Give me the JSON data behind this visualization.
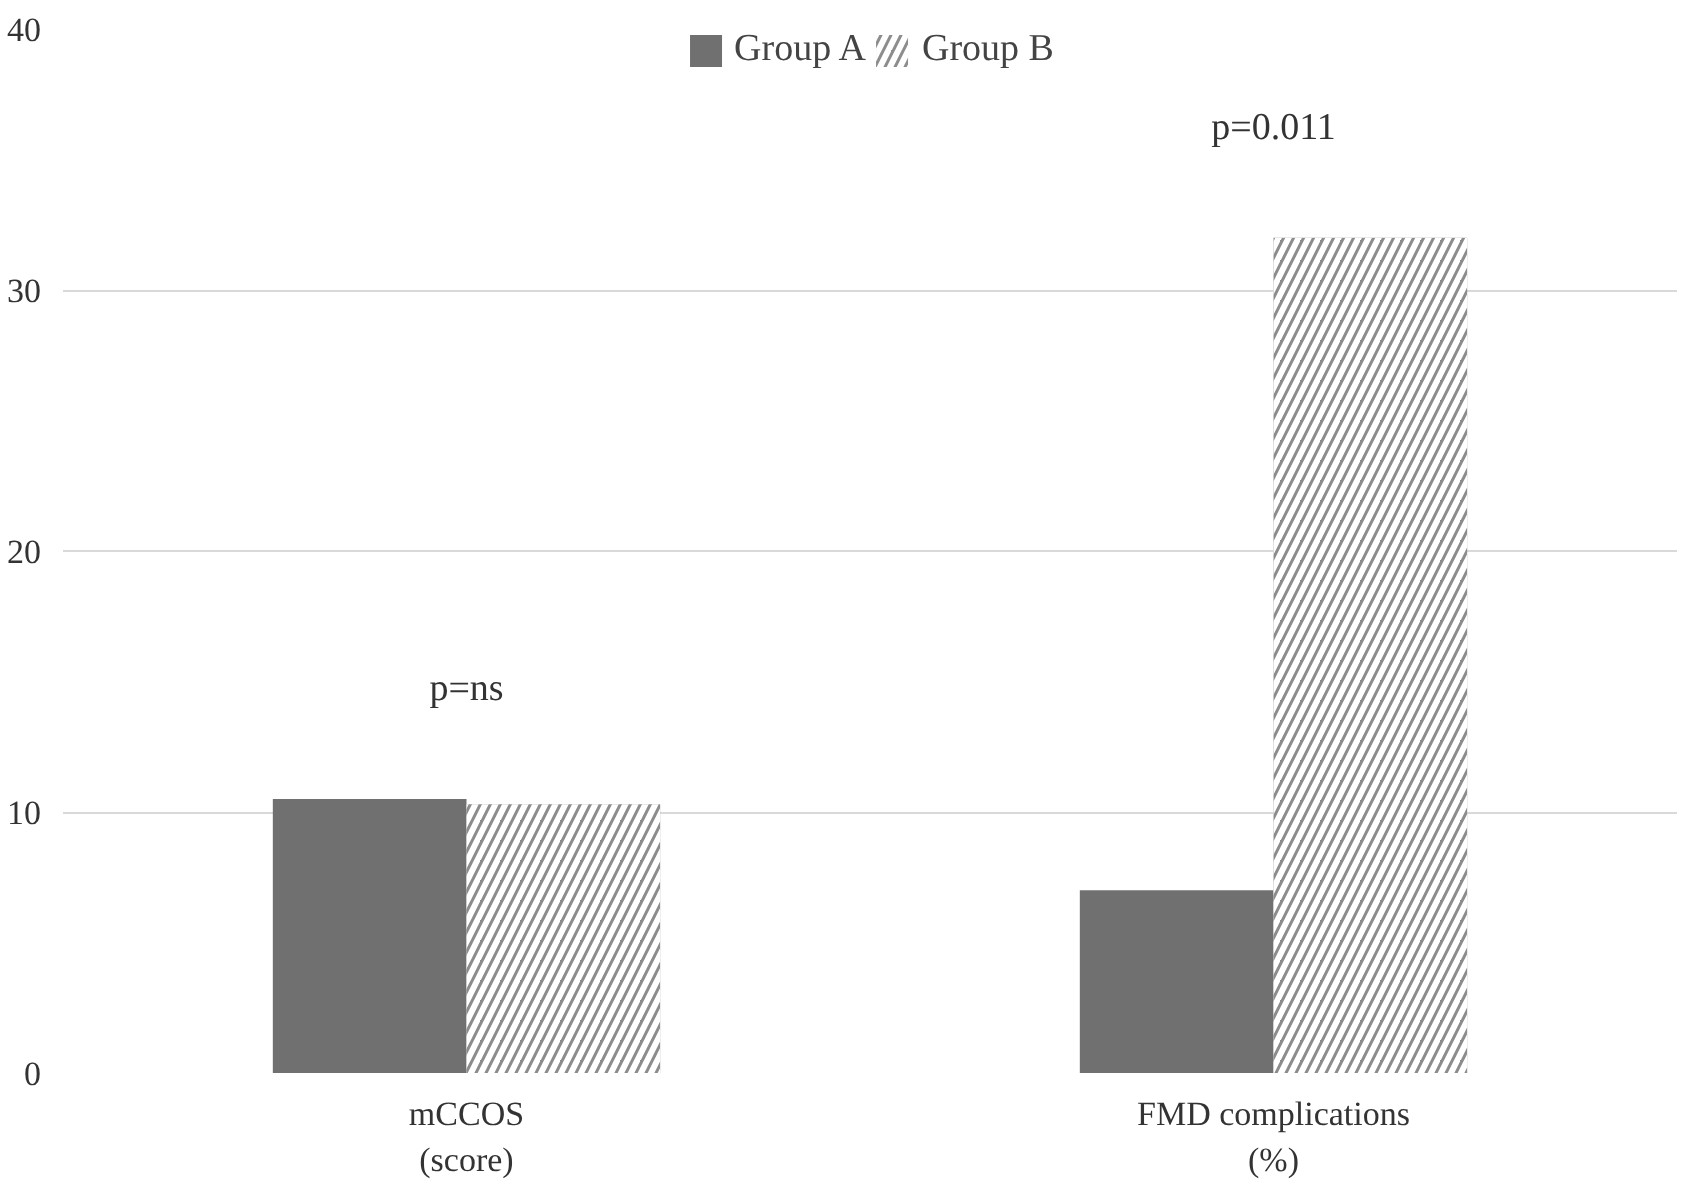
{
  "chart_data": {
    "type": "bar",
    "categories": [
      "mCCOS\n(score)",
      "FMD complications\n(%)"
    ],
    "series": [
      {
        "name": "Group A",
        "color": "#707070",
        "values": [
          10.5,
          7.0
        ]
      },
      {
        "name": "Group B",
        "color": "#8c8c8c",
        "values": [
          10.3,
          32
        ]
      }
    ],
    "ylim": [
      0,
      40
    ],
    "yticks": [
      0,
      10,
      20,
      30,
      40
    ],
    "grid": "y",
    "legend": "top",
    "annotations": [
      "p=ns",
      "p=0.011"
    ]
  }
}
